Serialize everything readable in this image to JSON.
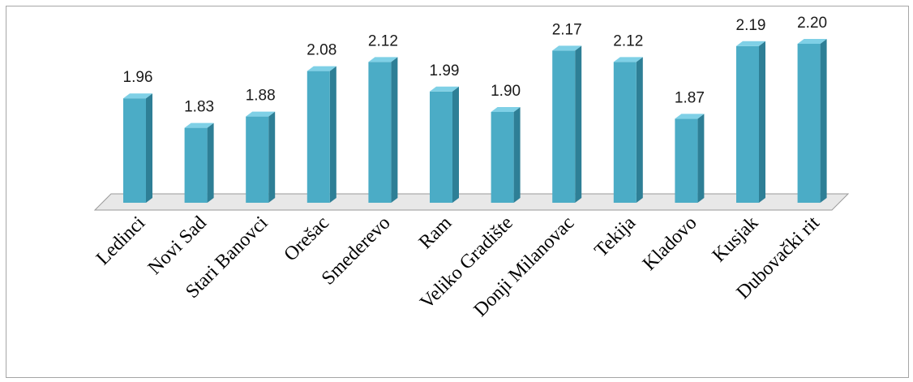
{
  "chart_data": {
    "type": "bar",
    "categories": [
      "Ledinci",
      "Novi Sad",
      "Stari Banovci",
      "Orešac",
      "Smederevo",
      "Ram",
      "Veliko Gradište",
      "Donji Milanovac",
      "Tekija",
      "Kladovo",
      "Kusjak",
      "Dubovački rit"
    ],
    "values": [
      1.96,
      1.83,
      1.88,
      2.08,
      2.12,
      1.99,
      1.9,
      2.17,
      2.12,
      1.87,
      2.19,
      2.2
    ],
    "value_labels": [
      "1.96",
      "1.83",
      "1.88",
      "2.08",
      "2.12",
      "1.99",
      "1.90",
      "2.17",
      "2.12",
      "1.87",
      "2.19",
      "2.20"
    ],
    "grid": false,
    "legend": "none",
    "style": "3d-column",
    "colors": {
      "bar_front": "#4bacc6",
      "bar_side": "#2e7f96",
      "bar_top": "#7fd0e6",
      "floor": "#e8e8e8",
      "floor_stroke": "#9a9a9a"
    }
  }
}
